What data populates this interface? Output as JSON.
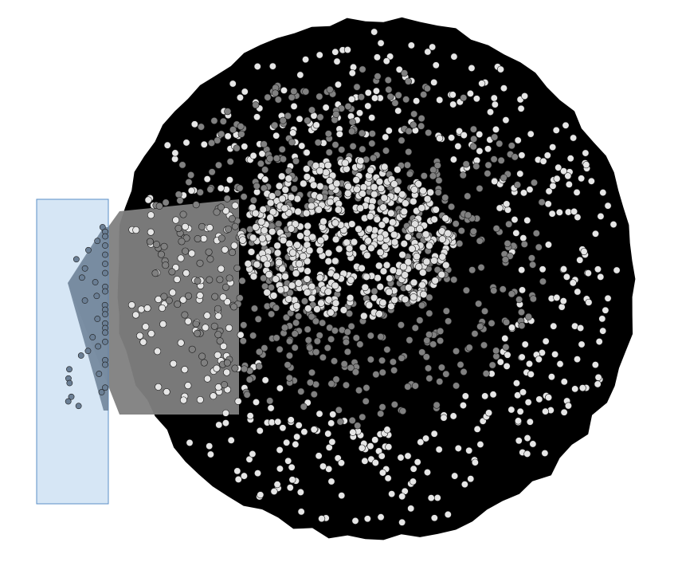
{
  "graph": {
    "background": "#ffffff",
    "edge_color": "#000000",
    "node_colors": {
      "outer_ring": "#e6e6e6",
      "middle_ring": "#808080",
      "core_cluster": "#e0e0e0",
      "selected": "#6b7f95"
    },
    "node_stroke": "#1a1a1a",
    "selection_fill": "#cfe2f3",
    "selection_stroke": "#5b8fc7",
    "selected_node_count": 40
  }
}
